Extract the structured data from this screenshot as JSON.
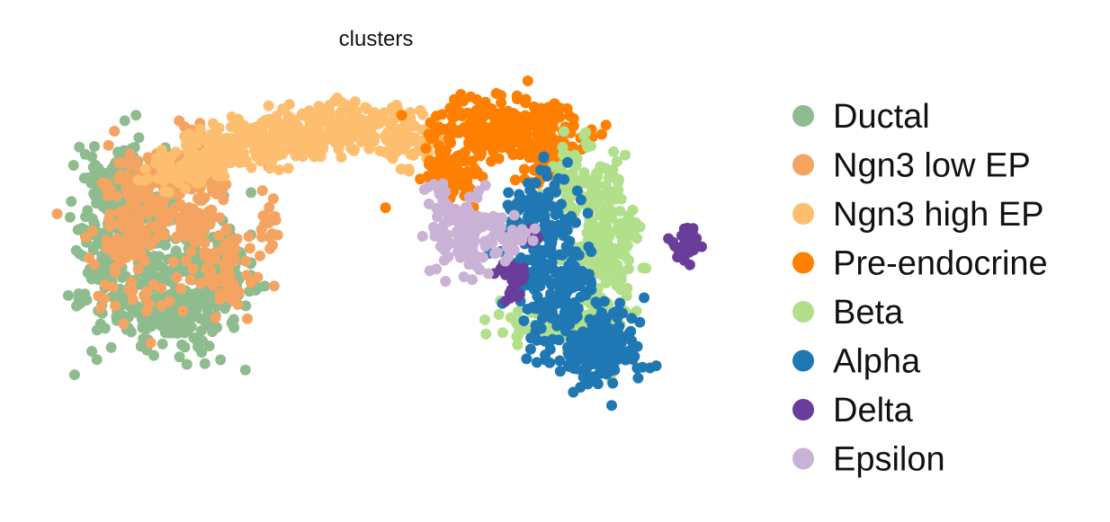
{
  "chart_data": {
    "type": "scatter",
    "title": "clusters",
    "xlabel": "",
    "ylabel": "",
    "grid": false,
    "legend_position": "right",
    "axes_visible": false,
    "series": [
      {
        "name": "Ductal",
        "color": "#8fbc8f",
        "clusters": [
          {
            "cx": 0.12,
            "cy": 0.46,
            "sx": 0.045,
            "sy": 0.13,
            "n": 330
          },
          {
            "cx": 0.18,
            "cy": 0.66,
            "sx": 0.05,
            "sy": 0.07,
            "n": 200
          },
          {
            "cx": 0.25,
            "cy": 0.56,
            "sx": 0.03,
            "sy": 0.06,
            "n": 120
          },
          {
            "cx": 0.1,
            "cy": 0.28,
            "sx": 0.03,
            "sy": 0.05,
            "n": 80
          }
        ]
      },
      {
        "name": "Ngn3 low EP",
        "color": "#f4a460",
        "clusters": [
          {
            "cx": 0.18,
            "cy": 0.3,
            "sx": 0.05,
            "sy": 0.07,
            "n": 240
          },
          {
            "cx": 0.12,
            "cy": 0.5,
            "sx": 0.035,
            "sy": 0.1,
            "n": 90
          },
          {
            "cx": 0.27,
            "cy": 0.55,
            "sx": 0.02,
            "sy": 0.07,
            "n": 60
          },
          {
            "cx": 0.22,
            "cy": 0.45,
            "sx": 0.02,
            "sy": 0.06,
            "n": 40
          },
          {
            "cx": 0.33,
            "cy": 0.42,
            "sx": 0.012,
            "sy": 0.06,
            "n": 20
          }
        ]
      },
      {
        "name": "Ngn3 high EP",
        "color": "#fdbf6f",
        "clusters": [
          {
            "cx": 0.27,
            "cy": 0.2,
            "sx": 0.04,
            "sy": 0.04,
            "n": 110
          },
          {
            "cx": 0.37,
            "cy": 0.16,
            "sx": 0.05,
            "sy": 0.035,
            "n": 170
          },
          {
            "cx": 0.47,
            "cy": 0.13,
            "sx": 0.04,
            "sy": 0.035,
            "n": 120
          },
          {
            "cx": 0.55,
            "cy": 0.19,
            "sx": 0.03,
            "sy": 0.04,
            "n": 60
          },
          {
            "cx": 0.2,
            "cy": 0.27,
            "sx": 0.03,
            "sy": 0.03,
            "n": 50
          }
        ]
      },
      {
        "name": "Pre-endocrine",
        "color": "#ff7f00",
        "clusters": [
          {
            "cx": 0.7,
            "cy": 0.13,
            "sx": 0.06,
            "sy": 0.04,
            "n": 220
          },
          {
            "cx": 0.62,
            "cy": 0.27,
            "sx": 0.03,
            "sy": 0.05,
            "n": 90
          },
          {
            "cx": 0.76,
            "cy": 0.23,
            "sx": 0.025,
            "sy": 0.05,
            "n": 60
          }
        ]
      },
      {
        "name": "Beta",
        "color": "#b2df8a",
        "clusters": [
          {
            "cx": 0.84,
            "cy": 0.48,
            "sx": 0.03,
            "sy": 0.13,
            "n": 240
          },
          {
            "cx": 0.79,
            "cy": 0.72,
            "sx": 0.05,
            "sy": 0.025,
            "n": 90
          },
          {
            "cx": 0.8,
            "cy": 0.28,
            "sx": 0.02,
            "sy": 0.06,
            "n": 40
          }
        ]
      },
      {
        "name": "Alpha",
        "color": "#1f78b4",
        "clusters": [
          {
            "cx": 0.76,
            "cy": 0.5,
            "sx": 0.025,
            "sy": 0.12,
            "n": 200
          },
          {
            "cx": 0.84,
            "cy": 0.78,
            "sx": 0.03,
            "sy": 0.06,
            "n": 180
          },
          {
            "cx": 0.8,
            "cy": 0.58,
            "sx": 0.015,
            "sy": 0.05,
            "n": 40
          },
          {
            "cx": 0.72,
            "cy": 0.4,
            "sx": 0.015,
            "sy": 0.05,
            "n": 30
          }
        ]
      },
      {
        "name": "Delta",
        "color": "#6a3d9a",
        "clusters": [
          {
            "cx": 0.71,
            "cy": 0.58,
            "sx": 0.012,
            "sy": 0.04,
            "n": 30
          },
          {
            "cx": 0.975,
            "cy": 0.48,
            "sx": 0.01,
            "sy": 0.025,
            "n": 30
          },
          {
            "cx": 0.74,
            "cy": 0.45,
            "sx": 0.008,
            "sy": 0.02,
            "n": 8
          }
        ]
      },
      {
        "name": "Epsilon",
        "color": "#cab2d6",
        "clusters": [
          {
            "cx": 0.63,
            "cy": 0.45,
            "sx": 0.03,
            "sy": 0.06,
            "n": 110
          },
          {
            "cx": 0.7,
            "cy": 0.45,
            "sx": 0.02,
            "sy": 0.03,
            "n": 40
          },
          {
            "cx": 0.6,
            "cy": 0.33,
            "sx": 0.01,
            "sy": 0.04,
            "n": 15
          }
        ]
      }
    ]
  }
}
